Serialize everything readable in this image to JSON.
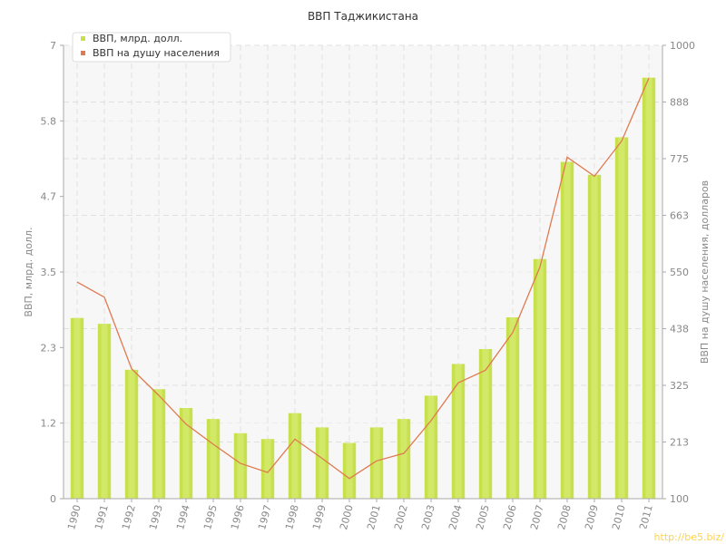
{
  "chart_data": {
    "type": "bar",
    "title": "ВВП Таджикистана",
    "categories": [
      "1990",
      "1991",
      "1992",
      "1993",
      "1994",
      "1995",
      "1996",
      "1997",
      "1998",
      "1999",
      "2000",
      "2001",
      "2002",
      "2003",
      "2004",
      "2005",
      "2006",
      "2007",
      "2008",
      "2009",
      "2010",
      "2011"
    ],
    "series": [
      {
        "name": "ВВП, млрд. долл.",
        "type": "bar",
        "axis": "left",
        "color": "#c8e04c",
        "values": [
          2.79,
          2.7,
          1.99,
          1.69,
          1.4,
          1.23,
          1.01,
          0.92,
          1.32,
          1.1,
          0.86,
          1.1,
          1.23,
          1.59,
          2.08,
          2.31,
          2.8,
          3.7,
          5.2,
          5.0,
          5.58,
          6.5
        ]
      },
      {
        "name": "ВВП на душу населения",
        "type": "line",
        "axis": "right",
        "color": "#e07a50",
        "values": [
          530,
          500,
          358,
          305,
          248,
          208,
          170,
          152,
          218,
          180,
          140,
          175,
          190,
          255,
          330,
          355,
          430,
          560,
          778,
          740,
          810,
          935
        ]
      }
    ],
    "ylabel": "ВВП, млрд. долл.",
    "ylabel_right": "ВВП на душу населения, долларов",
    "ylim": [
      0,
      7
    ],
    "ylim_right": [
      100,
      1000
    ],
    "yticks": [
      "0",
      "1.2",
      "2.3",
      "3.5",
      "4.7",
      "5.8",
      "7"
    ],
    "yticks_right": [
      "100",
      "213",
      "325",
      "438",
      "550",
      "663",
      "775",
      "888",
      "1000"
    ],
    "grid": true,
    "legend": "top-left"
  },
  "watermark": "http://be5.biz/",
  "colors": {
    "bar": "#c8e04c",
    "line": "#e07a50",
    "plot_bg": "#f7f7f7",
    "grid": "#e0e0e0"
  }
}
